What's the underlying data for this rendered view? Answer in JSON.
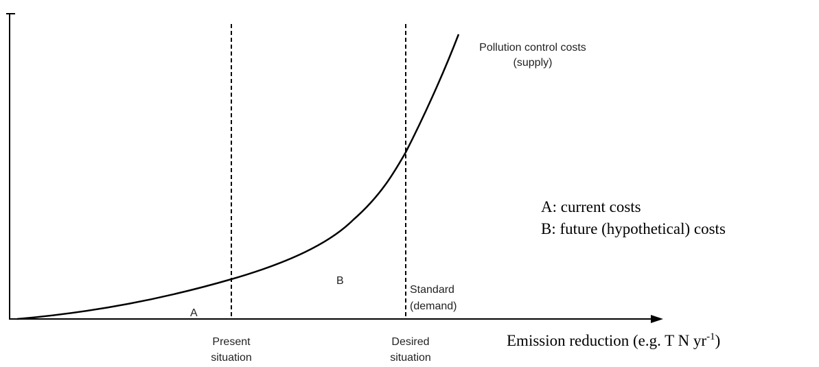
{
  "diagram": {
    "curve_label": [
      "Pollution control costs",
      "(supply)"
    ],
    "standard_label": [
      "Standard",
      "(demand)"
    ],
    "area_a": "A",
    "area_b": "B",
    "present_label": [
      "Present",
      "situation"
    ],
    "desired_label": [
      "Desired",
      "situation"
    ],
    "legend": [
      "A: current costs",
      "B: future (hypothetical) costs"
    ],
    "x_axis_label": {
      "text": "Emission reduction (e.g. T N yr",
      "superscript": "-1",
      "suffix": ")"
    }
  }
}
